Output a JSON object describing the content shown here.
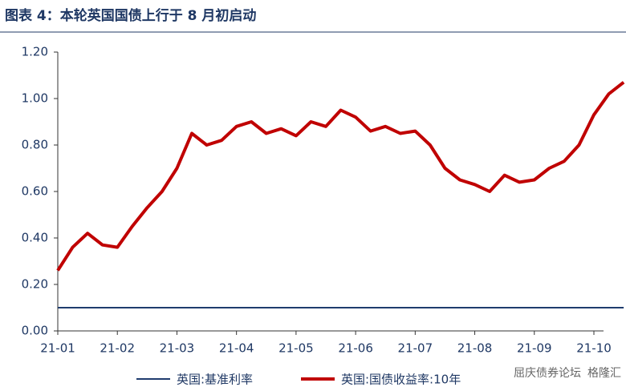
{
  "chart_data": {
    "type": "line",
    "title": "图表 4：本轮英国国债上行于 8 月初启动",
    "categories": [
      "21-01",
      null,
      null,
      null,
      "21-02",
      null,
      null,
      null,
      "21-03",
      null,
      null,
      null,
      "21-04",
      null,
      null,
      null,
      "21-05",
      null,
      null,
      null,
      "21-06",
      null,
      null,
      null,
      "21-07",
      null,
      null,
      null,
      "21-08",
      null,
      null,
      null,
      "21-09",
      null,
      null,
      null,
      "21-10",
      null,
      null
    ],
    "series": [
      {
        "name": "英国:基准利率",
        "color": "#1f3c6e",
        "width": 2,
        "values": [
          0.1,
          0.1,
          0.1,
          0.1,
          0.1,
          0.1,
          0.1,
          0.1,
          0.1,
          0.1,
          0.1,
          0.1,
          0.1,
          0.1,
          0.1,
          0.1,
          0.1,
          0.1,
          0.1,
          0.1,
          0.1,
          0.1,
          0.1,
          0.1,
          0.1,
          0.1,
          0.1,
          0.1,
          0.1,
          0.1,
          0.1,
          0.1,
          0.1,
          0.1,
          0.1,
          0.1,
          0.1,
          0.1,
          0.1
        ]
      },
      {
        "name": "英国:国债收益率:10年",
        "color": "#c00000",
        "width": 4,
        "values": [
          0.26,
          0.36,
          0.42,
          0.37,
          0.36,
          0.45,
          0.53,
          0.6,
          0.7,
          0.85,
          0.8,
          0.82,
          0.88,
          0.9,
          0.85,
          0.87,
          0.84,
          0.9,
          0.88,
          0.95,
          0.92,
          0.86,
          0.88,
          0.85,
          0.86,
          0.8,
          0.7,
          0.65,
          0.63,
          0.6,
          0.67,
          0.64,
          0.65,
          0.7,
          0.73,
          0.8,
          0.93,
          1.02,
          1.07
        ]
      }
    ],
    "ylim": [
      0,
      1.2
    ],
    "yticks": [
      {
        "value": 0,
        "label": "0.00"
      },
      {
        "value": 0.2,
        "label": "0.20"
      },
      {
        "value": 0.4,
        "label": "0.40"
      },
      {
        "value": 0.6,
        "label": "0.60"
      },
      {
        "value": 0.8,
        "label": "0.80"
      },
      {
        "value": 1.0,
        "label": "1.00"
      },
      {
        "value": 1.2,
        "label": "1.20"
      }
    ],
    "legend": "bottom",
    "watermarks": [
      "屈庆债券论坛",
      "格隆汇"
    ]
  }
}
